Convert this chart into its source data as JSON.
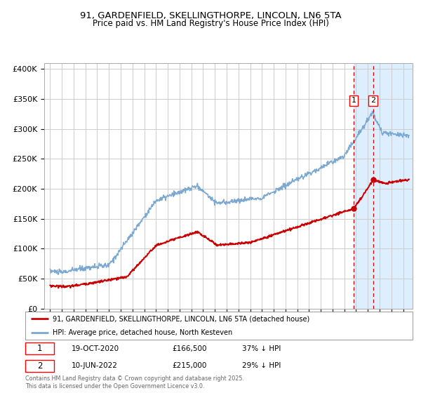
{
  "title_line1": "91, GARDENFIELD, SKELLINGTHORPE, LINCOLN, LN6 5TA",
  "title_line2": "Price paid vs. HM Land Registry's House Price Index (HPI)",
  "red_label": "91, GARDENFIELD, SKELLINGTHORPE, LINCOLN, LN6 5TA (detached house)",
  "blue_label": "HPI: Average price, detached house, North Kesteven",
  "footnote": "Contains HM Land Registry data © Crown copyright and database right 2025.\nThis data is licensed under the Open Government Licence v3.0.",
  "annotation1_date": "19-OCT-2020",
  "annotation1_price": "£166,500",
  "annotation1_hpi": "37% ↓ HPI",
  "annotation2_date": "10-JUN-2022",
  "annotation2_price": "£215,000",
  "annotation2_hpi": "29% ↓ HPI",
  "marker1_year": 2020.8,
  "marker1_red_value": 166500,
  "marker2_year": 2022.45,
  "marker2_red_value": 215000,
  "vline1_year": 2020.8,
  "vline2_year": 2022.45,
  "shade_start": 2020.8,
  "shade_end": 2025.8,
  "ylim_min": 0,
  "ylim_max": 410000,
  "xlim_min": 1994.5,
  "xlim_max": 2025.8,
  "background_color": "#ffffff",
  "grid_color": "#cccccc",
  "red_color": "#cc0000",
  "blue_color": "#7aa8d2",
  "shade_color": "#ddeeff",
  "vline_color": "#cc0000",
  "marker_color": "#cc0000"
}
